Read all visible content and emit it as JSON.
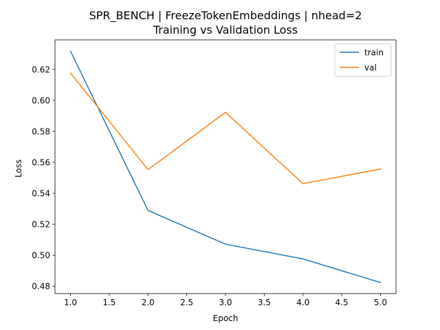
{
  "chart_data": {
    "type": "line",
    "title": "SPR_BENCH | FreezeTokenEmbeddings | nhead=2",
    "subtitle": "Training vs Validation Loss",
    "xlabel": "Epoch",
    "ylabel": "Loss",
    "x": [
      1,
      2,
      3,
      4,
      5
    ],
    "xlim": [
      0.8,
      5.2
    ],
    "ylim": [
      0.4752,
      0.6391
    ],
    "xticks": [
      1.0,
      1.5,
      2.0,
      2.5,
      3.0,
      3.5,
      4.0,
      4.5,
      5.0
    ],
    "xtick_labels": [
      "1.0",
      "1.5",
      "2.0",
      "2.5",
      "3.0",
      "3.5",
      "4.0",
      "4.5",
      "5.0"
    ],
    "yticks": [
      0.48,
      0.5,
      0.52,
      0.54,
      0.56,
      0.58,
      0.6,
      0.62
    ],
    "ytick_labels": [
      "0.48",
      "0.50",
      "0.52",
      "0.54",
      "0.56",
      "0.58",
      "0.60",
      "0.62"
    ],
    "series": [
      {
        "name": "train",
        "color": "#1f77b4",
        "values": [
          0.6318,
          0.5289,
          0.5071,
          0.4976,
          0.4823
        ]
      },
      {
        "name": "val",
        "color": "#ff7f0e",
        "values": [
          0.6177,
          0.5553,
          0.5923,
          0.5462,
          0.5557
        ]
      }
    ],
    "grid": false,
    "legend_position": "top-right"
  }
}
